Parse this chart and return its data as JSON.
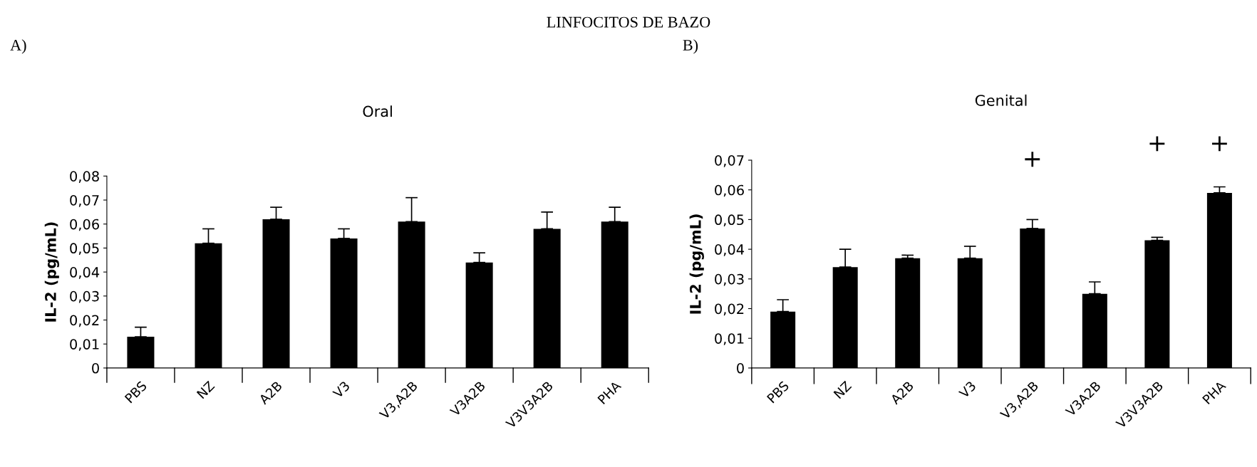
{
  "chart_data": [
    {
      "type": "bar",
      "title": "Oral",
      "ylabel": "IL-2 (pg/mL)",
      "annotations": [
        "LINFOCITOS DE BAZO",
        "A)"
      ],
      "categories": [
        "PBS",
        "NZ",
        "A2B",
        "V3",
        "V3,A2B",
        "V3A2B",
        "V3V3A2B",
        "PHA"
      ],
      "values": [
        0.013,
        0.052,
        0.062,
        0.054,
        0.061,
        0.044,
        0.058,
        0.061
      ],
      "errors": [
        0.004,
        0.006,
        0.005,
        0.004,
        0.01,
        0.004,
        0.007,
        0.006
      ],
      "color": "#000000",
      "ylim": [
        0,
        0.08
      ],
      "yticks": [
        0,
        {
          "value": 0.01,
          "label": "0,01"
        },
        {
          "value": 0.02,
          "label": "0,02"
        },
        {
          "value": 0.03,
          "label": "0,03"
        },
        {
          "value": 0.04,
          "label": "0,04"
        },
        {
          "value": 0.05,
          "label": "0,05"
        },
        {
          "value": 0.06,
          "label": "0,06"
        },
        {
          "value": 0.07,
          "label": "0,07"
        },
        {
          "value": 0.08,
          "label": "0,08"
        }
      ],
      "grid": false,
      "legend": false
    },
    {
      "type": "bar",
      "title": "Genital",
      "ylabel": "IL-2 (pg/mL)",
      "annotations": [
        "B)",
        "+",
        "+",
        "+"
      ],
      "categories": [
        "PBS",
        "NZ",
        "A2B",
        "V3",
        "V3,A2B",
        "V3A2B",
        "V3V3A2B",
        "PHA"
      ],
      "values": [
        0.019,
        0.034,
        0.037,
        0.037,
        0.047,
        0.025,
        0.043,
        0.059
      ],
      "errors": [
        0.004,
        0.006,
        0.001,
        0.004,
        0.003,
        0.004,
        0.001,
        0.002
      ],
      "color": "#000000",
      "ylim": [
        0,
        0.07
      ],
      "yticks": [
        0,
        {
          "value": 0.01,
          "label": "0,01"
        },
        {
          "value": 0.02,
          "label": "0,02"
        },
        {
          "value": 0.03,
          "label": "0,03"
        },
        {
          "value": 0.04,
          "label": "0,04"
        },
        {
          "value": 0.05,
          "label": "0,05"
        },
        {
          "value": 0.06,
          "label": "0,06"
        },
        {
          "value": 0.07,
          "label": "0,07"
        }
      ],
      "grid": false,
      "legend": false
    }
  ]
}
